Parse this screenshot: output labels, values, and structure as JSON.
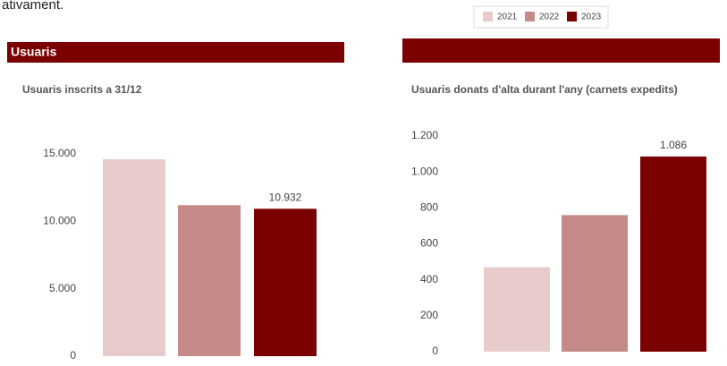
{
  "page_text": "ativament.",
  "section_title": "Usuaris",
  "chart_data": [
    {
      "type": "bar",
      "title": "Usuaris inscrits a 31/12",
      "series": [
        {
          "name": "2021",
          "color": "#e8cccc",
          "values": [
            14600
          ]
        },
        {
          "name": "2022",
          "color": "#c48a88",
          "values": [
            11200
          ]
        },
        {
          "name": "2023",
          "color": "#7b0000",
          "values": [
            10932
          ],
          "value_labels": [
            "10.932"
          ]
        }
      ],
      "ylim": [
        0,
        15000
      ],
      "yticks": [
        0,
        {
          "value": 5000,
          "label": "5.000"
        },
        {
          "value": 10000,
          "label": "10.000"
        },
        {
          "value": 15000,
          "label": "15.000"
        }
      ],
      "grid": false
    },
    {
      "type": "bar",
      "title": "Usuaris donats d'alta durant l'any (carnets expedits)",
      "series": [
        {
          "name": "2021",
          "color": "#e8cccc",
          "values": [
            470
          ]
        },
        {
          "name": "2022",
          "color": "#c48a88",
          "values": [
            760
          ]
        },
        {
          "name": "2023",
          "color": "#7b0000",
          "values": [
            1086
          ],
          "value_labels": [
            "1.086"
          ]
        }
      ],
      "ylim": [
        0,
        1200
      ],
      "yticks": [
        0,
        200,
        400,
        600,
        800,
        {
          "value": 1000,
          "label": "1.000"
        },
        {
          "value": 1200,
          "label": "1.200"
        }
      ],
      "grid": false
    }
  ]
}
